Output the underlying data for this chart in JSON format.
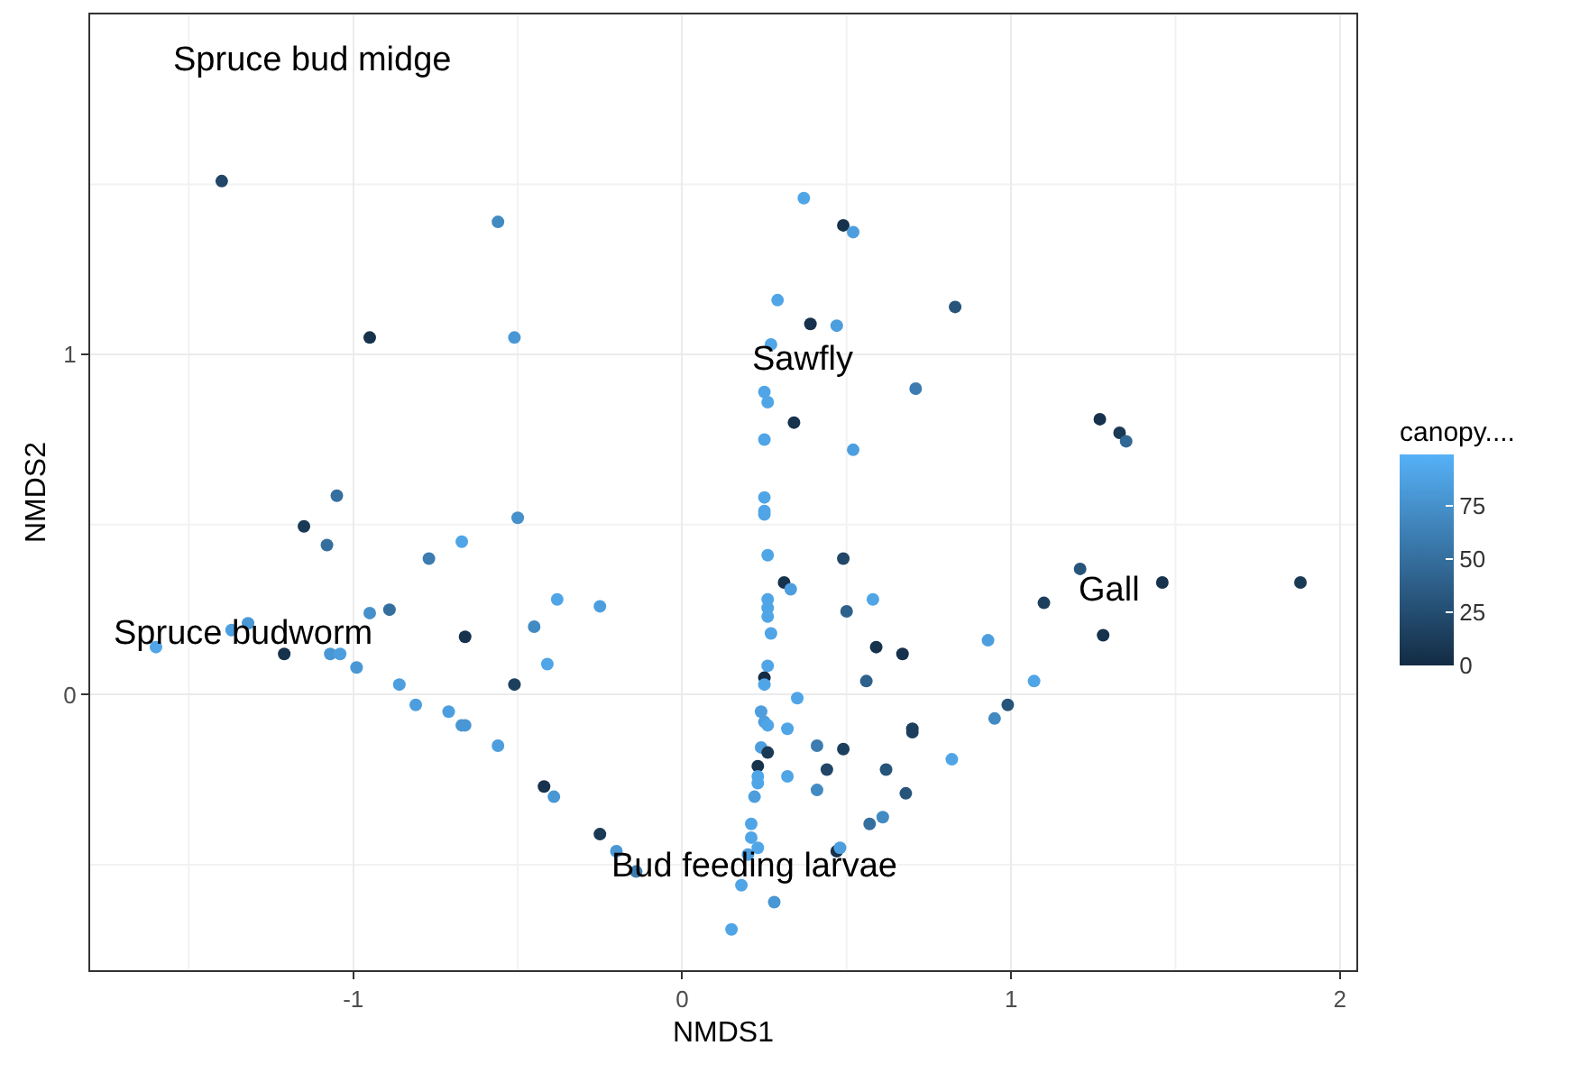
{
  "chart_data": {
    "type": "scatter",
    "xlabel": "NMDS1",
    "ylabel": "NMDS2",
    "legend_title": "canopy....",
    "xlim": [
      -1.8,
      2.05
    ],
    "ylim": [
      -0.81,
      2.0
    ],
    "xticks": [
      -1,
      0,
      1,
      2
    ],
    "yticks": [
      0,
      1
    ],
    "grid": true,
    "marker": "circle",
    "clim": [
      0,
      99
    ],
    "cticks": [
      0,
      25,
      50,
      75
    ],
    "x": [
      -1.4,
      -0.56,
      -0.95,
      -0.51,
      -1.05,
      -1.15,
      -1.08,
      -0.67,
      -0.5,
      -0.77,
      -0.95,
      -0.89,
      -1.32,
      -1.37,
      -1.6,
      -1.21,
      -1.07,
      -1.04,
      -0.99,
      -0.86,
      -0.81,
      -0.71,
      -0.67,
      -0.66,
      -0.66,
      -0.56,
      -0.51,
      -0.45,
      -0.38,
      -0.25,
      -0.41,
      -0.42,
      -0.39,
      -0.25,
      -0.2,
      -0.14,
      0.37,
      0.49,
      0.52,
      0.29,
      0.39,
      0.47,
      0.83,
      0.27,
      0.71,
      0.25,
      0.26,
      0.34,
      0.25,
      0.52,
      0.25,
      0.25,
      0.25,
      0.26,
      0.49,
      0.31,
      0.33,
      0.58,
      0.26,
      0.26,
      0.26,
      0.5,
      0.27,
      0.59,
      0.67,
      0.93,
      0.26,
      0.25,
      0.25,
      0.56,
      0.35,
      0.24,
      0.25,
      0.26,
      0.32,
      0.99,
      0.95,
      0.7,
      0.7,
      0.24,
      0.26,
      0.41,
      0.49,
      0.23,
      0.44,
      0.62,
      0.82,
      0.23,
      0.23,
      0.32,
      0.22,
      0.41,
      0.68,
      0.21,
      0.61,
      0.57,
      0.21,
      0.23,
      0.2,
      0.47,
      0.48,
      0.18,
      0.28,
      0.15,
      1.27,
      1.33,
      1.35,
      1.21,
      1.1,
      1.46,
      1.88,
      1.28,
      1.07
    ],
    "values": [
      1.51,
      1.39,
      1.05,
      1.05,
      0.585,
      0.495,
      0.44,
      0.45,
      0.52,
      0.4,
      0.24,
      0.25,
      0.21,
      0.19,
      0.14,
      0.12,
      0.12,
      0.12,
      0.08,
      0.03,
      -0.03,
      -0.05,
      -0.09,
      -0.09,
      0.17,
      -0.15,
      0.03,
      0.2,
      0.28,
      0.26,
      0.09,
      -0.27,
      -0.3,
      -0.41,
      -0.46,
      -0.52,
      1.46,
      1.38,
      1.36,
      1.16,
      1.09,
      1.085,
      1.14,
      1.03,
      0.9,
      0.89,
      0.86,
      0.8,
      0.75,
      0.72,
      0.58,
      0.54,
      0.53,
      0.41,
      0.4,
      0.33,
      0.31,
      0.28,
      0.28,
      0.255,
      0.23,
      0.245,
      0.18,
      0.14,
      0.12,
      0.16,
      0.085,
      0.05,
      0.03,
      0.04,
      -0.01,
      -0.05,
      -0.08,
      -0.09,
      -0.1,
      -0.03,
      -0.07,
      -0.1,
      -0.11,
      -0.155,
      -0.17,
      -0.15,
      -0.16,
      -0.21,
      -0.22,
      -0.22,
      -0.19,
      -0.24,
      -0.26,
      -0.24,
      -0.3,
      -0.28,
      -0.29,
      -0.38,
      -0.36,
      -0.38,
      -0.42,
      -0.45,
      -0.47,
      -0.46,
      -0.45,
      -0.56,
      -0.61,
      -0.69,
      0.81,
      0.77,
      0.745,
      0.37,
      0.27,
      0.33,
      0.33,
      0.175,
      0.04
    ],
    "cvalues": [
      20,
      70,
      5,
      80,
      50,
      10,
      50,
      90,
      75,
      60,
      75,
      50,
      80,
      85,
      90,
      5,
      80,
      85,
      80,
      85,
      85,
      85,
      80,
      80,
      5,
      85,
      15,
      70,
      90,
      85,
      90,
      5,
      80,
      10,
      80,
      60,
      90,
      5,
      85,
      90,
      5,
      85,
      30,
      90,
      60,
      90,
      90,
      5,
      90,
      85,
      90,
      90,
      90,
      90,
      20,
      5,
      85,
      90,
      90,
      90,
      90,
      40,
      90,
      5,
      5,
      85,
      90,
      0,
      90,
      40,
      90,
      85,
      85,
      90,
      90,
      30,
      70,
      15,
      15,
      85,
      10,
      60,
      15,
      5,
      20,
      30,
      90,
      90,
      90,
      90,
      85,
      70,
      30,
      90,
      70,
      50,
      90,
      90,
      85,
      5,
      85,
      90,
      80,
      90,
      5,
      10,
      45,
      30,
      15,
      5,
      10,
      5,
      90
    ],
    "annotations": [
      "Spruce bud midge",
      "Sawfly",
      "Gall",
      "Spruce budworm",
      "Bud feeding larvae"
    ]
  }
}
